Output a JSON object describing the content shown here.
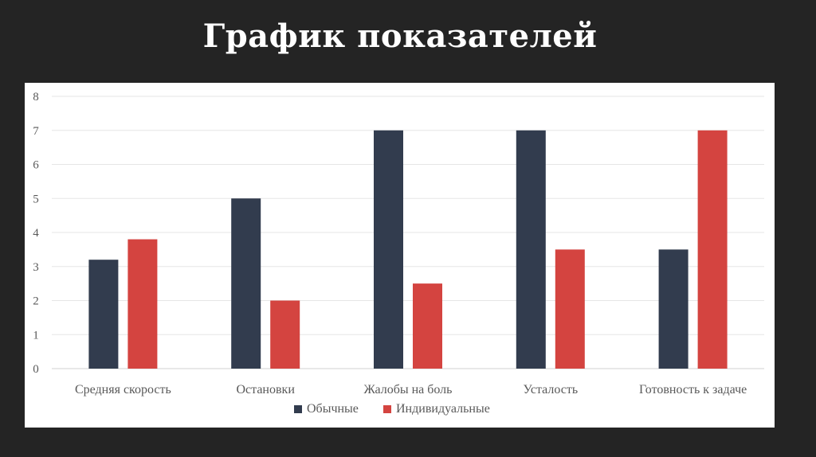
{
  "title": "График показателей",
  "chart_data": {
    "type": "bar",
    "categories": [
      "Средняя скорость",
      "Остановки",
      "Жалобы на боль",
      "Усталость",
      "Готовность к задаче"
    ],
    "series": [
      {
        "name": "Обычные",
        "values": [
          3.2,
          5,
          7,
          7,
          3.5
        ],
        "color": "#323c4e"
      },
      {
        "name": "Индивидуальные",
        "values": [
          3.8,
          2,
          2.5,
          3.5,
          7
        ],
        "color": "#d44440"
      }
    ],
    "ylim": [
      0,
      8
    ],
    "yticks": [
      "0",
      "1",
      "2",
      "3",
      "4",
      "5",
      "6",
      "7",
      "8"
    ],
    "grid": true,
    "legend_position": "bottom"
  }
}
